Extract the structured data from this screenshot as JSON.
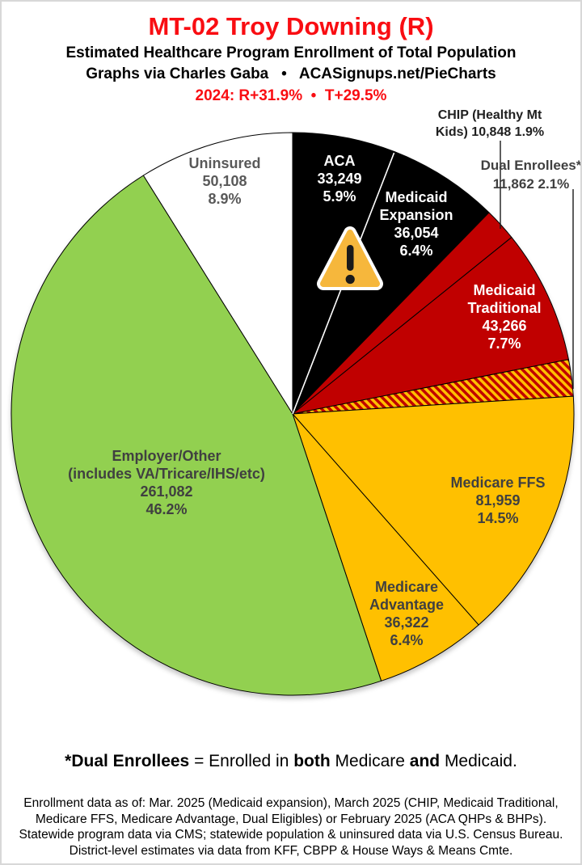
{
  "header": {
    "title": "MT-02 Troy Downing (R)",
    "title_color": "#f90d12",
    "subtitle1": "Estimated Healthcare Program Enrollment of Total Population",
    "subtitle2": "Graphs via Charles Gaba   •   ACASignups.net/PieCharts",
    "politics": "2024: R+31.9%  •  T+29.5%",
    "politics_color": "#f90d12"
  },
  "chart_data": {
    "type": "pie",
    "title": "MT-02 Troy Downing (R) — Estimated Healthcare Program Enrollment of Total Population",
    "start_angle": "12 o'clock, clockwise",
    "slices": [
      {
        "id": "aca",
        "name": "ACA",
        "value": 33249,
        "pct": 5.9,
        "color": "#000000",
        "label_lines": [
          "ACA",
          "33,249",
          "5.9%"
        ],
        "label_color": "#ffffff",
        "label_placement": "inside"
      },
      {
        "id": "medicaid_expansion",
        "name": "Medicaid Expansion",
        "value": 36054,
        "pct": 6.4,
        "color": "#000000",
        "label_lines": [
          "Medicaid",
          "Expansion",
          "36,054",
          "6.4%"
        ],
        "label_color": "#ffffff",
        "label_placement": "inside"
      },
      {
        "id": "chip",
        "name": "CHIP (Healthy Mt Kids)",
        "value": 10848,
        "pct": 1.9,
        "color": "#c00000",
        "label_lines": [
          "CHIP (Healthy Mt",
          "Kids) 10,848 1.9%"
        ],
        "label_color": "#1f1f1f",
        "label_placement": "outside-callout"
      },
      {
        "id": "medicaid_traditional",
        "name": "Medicaid Traditional",
        "value": 43266,
        "pct": 7.7,
        "color": "#c00000",
        "label_lines": [
          "Medicaid",
          "Traditional",
          "43,266",
          "7.7%"
        ],
        "label_color": "#ffffff",
        "label_placement": "inside"
      },
      {
        "id": "dual",
        "name": "Dual Enrollees*",
        "value": 11862,
        "pct": 2.1,
        "color": "hatch",
        "label_lines": [
          "Dual Enrollees*",
          "11,862 2.1%"
        ],
        "label_color": "#404040",
        "label_placement": "outside-callout"
      },
      {
        "id": "medicare_ffs",
        "name": "Medicare FFS",
        "value": 81959,
        "pct": 14.5,
        "color": "#ffc000",
        "label_lines": [
          "Medicare FFS",
          "81,959",
          "14.5%"
        ],
        "label_color": "#404040",
        "label_placement": "inside"
      },
      {
        "id": "medicare_advantage",
        "name": "Medicare Advantage",
        "value": 36322,
        "pct": 6.4,
        "color": "#ffc000",
        "label_lines": [
          "Medicare",
          "Advantage",
          "36,322",
          "6.4%"
        ],
        "label_color": "#404040",
        "label_placement": "inside"
      },
      {
        "id": "employer",
        "name": "Employer/Other (includes VA/Tricare/IHS/etc)",
        "value": 261082,
        "pct": 46.2,
        "color": "#92d050",
        "label_lines": [
          "Employer/Other",
          "(includes VA/Tricare/IHS/etc)",
          "261,082",
          "46.2%"
        ],
        "label_color": "#404040",
        "label_placement": "inside"
      },
      {
        "id": "uninsured",
        "name": "Uninsured",
        "value": 50108,
        "pct": 8.9,
        "color": "#ffffff",
        "label_lines": [
          "Uninsured",
          "50,108",
          "8.9%"
        ],
        "label_color": "#595959",
        "label_placement": "inside"
      }
    ],
    "hatch_pattern": {
      "background": "#ffc000",
      "stripe": "#c00000"
    },
    "slice_outline_color": "#000000",
    "black_slice_divider_color": "#ffffff",
    "warning_icon": {
      "present": true,
      "fill": "#f6b73c",
      "outline": "#ffffff",
      "glyph_color": "#1a1a1a"
    },
    "legend_position": "labels on slices + callout labels top-right"
  },
  "footnote": {
    "segments": [
      {
        "text": "*Dual Enrollees",
        "bold": true
      },
      {
        "text": " = Enrolled in ",
        "bold": false
      },
      {
        "text": "both",
        "bold": true
      },
      {
        "text": " Medicare ",
        "bold": false
      },
      {
        "text": "and",
        "bold": true
      },
      {
        "text": " Medicaid.",
        "bold": false
      }
    ]
  },
  "footer": {
    "lines": [
      "Enrollment data as of: Mar. 2025 (Medicaid expansion), March 2025 (CHIP, Medicaid Traditional,",
      "Medicare FFS, Medicare Advantage, Dual Eligibles) or February 2025 (ACA QHPs & BHPs).",
      "Statewide program data via CMS; statewide population & uninsured data via U.S. Census Bureau.",
      "District-level estimates via data from KFF, CBPP & House Ways & Means Cmte."
    ]
  }
}
